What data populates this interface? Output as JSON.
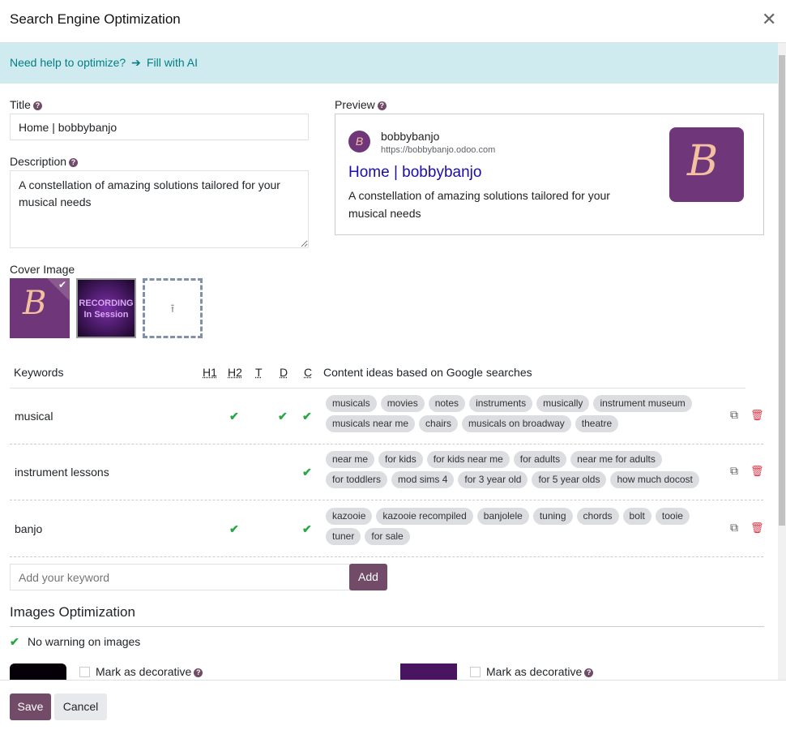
{
  "dialog": {
    "title": "Search Engine Optimization"
  },
  "banner": {
    "help": "Need help to optimize?",
    "fill": "Fill with AI"
  },
  "form": {
    "title_label": "Title",
    "title_value": "Home | bobbybanjo",
    "description_label": "Description",
    "description_value": "A constellation of amazing solutions tailored for your musical needs",
    "cover_label": "Cover Image",
    "cover_images": [
      "bobbybanjo logo",
      "RECORDING In Session"
    ]
  },
  "preview": {
    "label": "Preview",
    "site": "bobbybanjo",
    "url": "https://bobbybanjo.odoo.com",
    "title": "Home | bobbybanjo",
    "description": "A constellation of amazing solutions tailored for your musical needs"
  },
  "keywords": {
    "headers": {
      "keyword": "Keywords",
      "h1": "H1",
      "h2": "H2",
      "t": "T",
      "d": "D",
      "c": "C",
      "ideas": "Content ideas based on Google searches"
    },
    "rows": [
      {
        "keyword": "musical",
        "h1": false,
        "h2": true,
        "t": false,
        "d": true,
        "c": true,
        "tags": [
          "musicals",
          "movies",
          "notes",
          "instruments",
          "musically",
          "instrument museum",
          "musicals near me",
          "chairs",
          "musicals on broadway",
          "theatre"
        ]
      },
      {
        "keyword": "instrument lessons",
        "h1": false,
        "h2": false,
        "t": false,
        "d": false,
        "c": true,
        "tags": [
          "near me",
          "for kids",
          "for kids near me",
          "for adults",
          "near me for adults",
          "for toddlers",
          "mod sims 4",
          "for 3 year old",
          "for 5 year olds",
          "how much docost"
        ]
      },
      {
        "keyword": "banjo",
        "h1": false,
        "h2": true,
        "t": false,
        "d": false,
        "c": true,
        "tags": [
          "kazooie",
          "kazooie recompiled",
          "banjolele",
          "tuning",
          "chords",
          "bolt",
          "tooie",
          "tuner",
          "for sale"
        ]
      }
    ],
    "add_placeholder": "Add your keyword",
    "add_label": "Add"
  },
  "images": {
    "title": "Images Optimization",
    "status": "No warning on images",
    "decorative_label": "Mark as decorative"
  },
  "footer": {
    "save": "Save",
    "cancel": "Cancel"
  },
  "colors": {
    "primary": "#714b67",
    "banner": "#d0ebf0",
    "link": "#1a0dab",
    "check": "#28a745",
    "delete": "#dc3545"
  }
}
